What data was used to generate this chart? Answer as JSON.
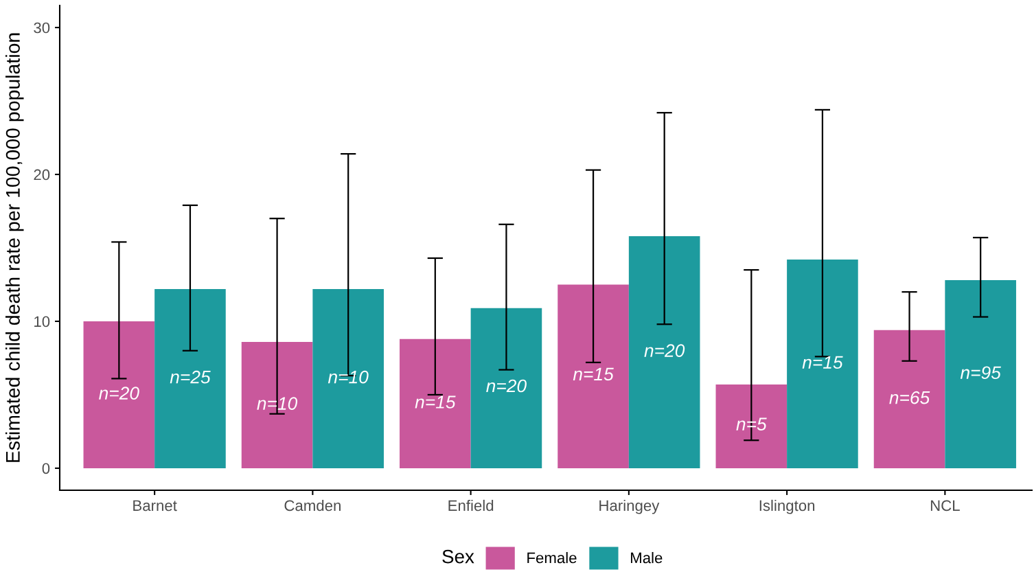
{
  "chart_data": {
    "type": "bar",
    "ylabel": "Estimated child death rate per 100,000 population",
    "legend_title": "Sex",
    "legend": "bottom",
    "categories": [
      "Barnet",
      "Camden",
      "Enfield",
      "Haringey",
      "Islington",
      "NCL"
    ],
    "series": [
      {
        "name": "Female",
        "color": "#c9589c",
        "values": [
          10.0,
          8.6,
          8.8,
          12.5,
          5.7,
          9.4
        ],
        "errors": [
          [
            6.1,
            15.4
          ],
          [
            3.7,
            17.0
          ],
          [
            5.0,
            14.3
          ],
          [
            7.2,
            20.3
          ],
          [
            1.9,
            13.5
          ],
          [
            7.3,
            12.0
          ]
        ]
      },
      {
        "name": "Male",
        "color": "#1d9b9e",
        "values": [
          12.2,
          12.2,
          10.9,
          15.8,
          14.2,
          12.8
        ],
        "errors": [
          [
            8.0,
            17.9
          ],
          [
            6.3,
            21.4
          ],
          [
            6.7,
            16.6
          ],
          [
            9.8,
            24.2
          ],
          [
            7.6,
            24.4
          ],
          [
            10.3,
            15.7
          ]
        ]
      }
    ],
    "annotations": [
      {
        "text": "n=20",
        "x": "Barnet",
        "y": 5.0
      },
      {
        "text": "n=25",
        "x": "Barnet",
        "y": 6.1
      },
      {
        "text": "n=10",
        "x": "Camden",
        "y": 4.3
      },
      {
        "text": "n=10",
        "x": "Camden",
        "y": 6.1
      },
      {
        "text": "n=15",
        "x": "Enfield",
        "y": 4.4
      },
      {
        "text": "n=20",
        "x": "Enfield",
        "y": 5.5
      },
      {
        "text": "n=15",
        "x": "Haringey",
        "y": 6.3
      },
      {
        "text": "n=20",
        "x": "Haringey",
        "y": 7.9
      },
      {
        "text": "n=5",
        "x": "Islington",
        "y": 2.9
      },
      {
        "text": "n=15",
        "x": "Islington",
        "y": 7.1
      },
      {
        "text": "n=65",
        "x": "NCL",
        "y": 4.7
      },
      {
        "text": "n=95",
        "x": "NCL",
        "y": 6.4
      }
    ],
    "ylim": [
      -1.5,
      31.5
    ],
    "yticks": [
      0,
      10,
      20,
      30
    ]
  }
}
